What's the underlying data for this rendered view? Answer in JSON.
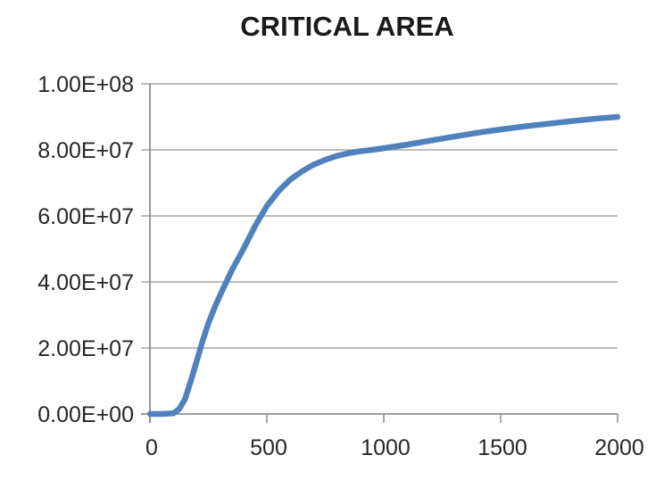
{
  "chart_data": {
    "type": "line",
    "title": "CRITICAL AREA",
    "xlabel": "",
    "ylabel": "",
    "xlim": [
      0,
      2000
    ],
    "ylim": [
      0,
      100000000
    ],
    "x_ticks": [
      0,
      500,
      1000,
      1500,
      2000
    ],
    "x_tick_labels": [
      "0",
      "500",
      "1000",
      "1500",
      "2000"
    ],
    "y_ticks": [
      0,
      20000000,
      40000000,
      60000000,
      80000000,
      100000000
    ],
    "y_tick_labels": [
      "0.00E+00",
      "2.00E+07",
      "4.00E+07",
      "6.00E+07",
      "8.00E+07",
      "1.00E+08"
    ],
    "grid": "horizontal-only",
    "legend": "none",
    "series": [
      {
        "name": "CRITICAL AREA",
        "color": "#4F81BD",
        "points": [
          [
            0,
            0
          ],
          [
            50,
            0
          ],
          [
            100,
            200000
          ],
          [
            125,
            1500000
          ],
          [
            150,
            4500000
          ],
          [
            175,
            10000000
          ],
          [
            200,
            16000000
          ],
          [
            225,
            22000000
          ],
          [
            250,
            27500000
          ],
          [
            275,
            32000000
          ],
          [
            300,
            36000000
          ],
          [
            350,
            43500000
          ],
          [
            400,
            50000000
          ],
          [
            450,
            57000000
          ],
          [
            500,
            63000000
          ],
          [
            550,
            67500000
          ],
          [
            600,
            71000000
          ],
          [
            650,
            73500000
          ],
          [
            700,
            75500000
          ],
          [
            750,
            77000000
          ],
          [
            800,
            78200000
          ],
          [
            850,
            79000000
          ],
          [
            900,
            79600000
          ],
          [
            950,
            80000000
          ],
          [
            1000,
            80500000
          ],
          [
            1100,
            81600000
          ],
          [
            1200,
            82800000
          ],
          [
            1300,
            84000000
          ],
          [
            1400,
            85200000
          ],
          [
            1500,
            86200000
          ],
          [
            1600,
            87100000
          ],
          [
            1700,
            87900000
          ],
          [
            1800,
            88700000
          ],
          [
            1900,
            89400000
          ],
          [
            2000,
            90000000
          ]
        ]
      }
    ]
  },
  "colors": {
    "line": "#4F81BD",
    "grid": "#A6A6A6",
    "axis": "#808080",
    "text": "#262626",
    "background": "#FFFFFF"
  }
}
